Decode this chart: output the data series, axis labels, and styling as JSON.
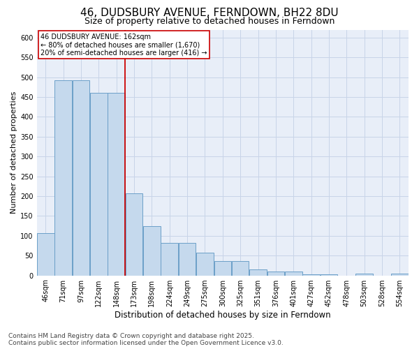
{
  "title": "46, DUDSBURY AVENUE, FERNDOWN, BH22 8DU",
  "subtitle": "Size of property relative to detached houses in Ferndown",
  "xlabel": "Distribution of detached houses by size in Ferndown",
  "ylabel": "Number of detached properties",
  "categories": [
    "46sqm",
    "71sqm",
    "97sqm",
    "122sqm",
    "148sqm",
    "173sqm",
    "198sqm",
    "224sqm",
    "249sqm",
    "275sqm",
    "300sqm",
    "325sqm",
    "351sqm",
    "376sqm",
    "401sqm",
    "427sqm",
    "452sqm",
    "478sqm",
    "503sqm",
    "528sqm",
    "554sqm"
  ],
  "values": [
    106,
    493,
    493,
    461,
    461,
    207,
    125,
    82,
    82,
    57,
    37,
    37,
    15,
    10,
    10,
    3,
    3,
    0,
    5,
    0,
    5
  ],
  "bar_color": "#c5d9ed",
  "bar_edge_color": "#6b9fc8",
  "vline_color": "#cc0000",
  "annotation_line1": "46 DUDSBURY AVENUE: 162sqm",
  "annotation_line2": "← 80% of detached houses are smaller (1,670)",
  "annotation_line3": "20% of semi-detached houses are larger (416) →",
  "annotation_box_color": "#ffffff",
  "annotation_box_edge": "#cc0000",
  "grid_color": "#c8d4e8",
  "background_color": "#e8eef8",
  "ylim": [
    0,
    620
  ],
  "yticks": [
    0,
    50,
    100,
    150,
    200,
    250,
    300,
    350,
    400,
    450,
    500,
    550,
    600
  ],
  "footer": "Contains HM Land Registry data © Crown copyright and database right 2025.\nContains public sector information licensed under the Open Government Licence v3.0.",
  "title_fontsize": 11,
  "subtitle_fontsize": 9,
  "xlabel_fontsize": 8.5,
  "ylabel_fontsize": 8,
  "tick_fontsize": 7,
  "footer_fontsize": 6.5
}
